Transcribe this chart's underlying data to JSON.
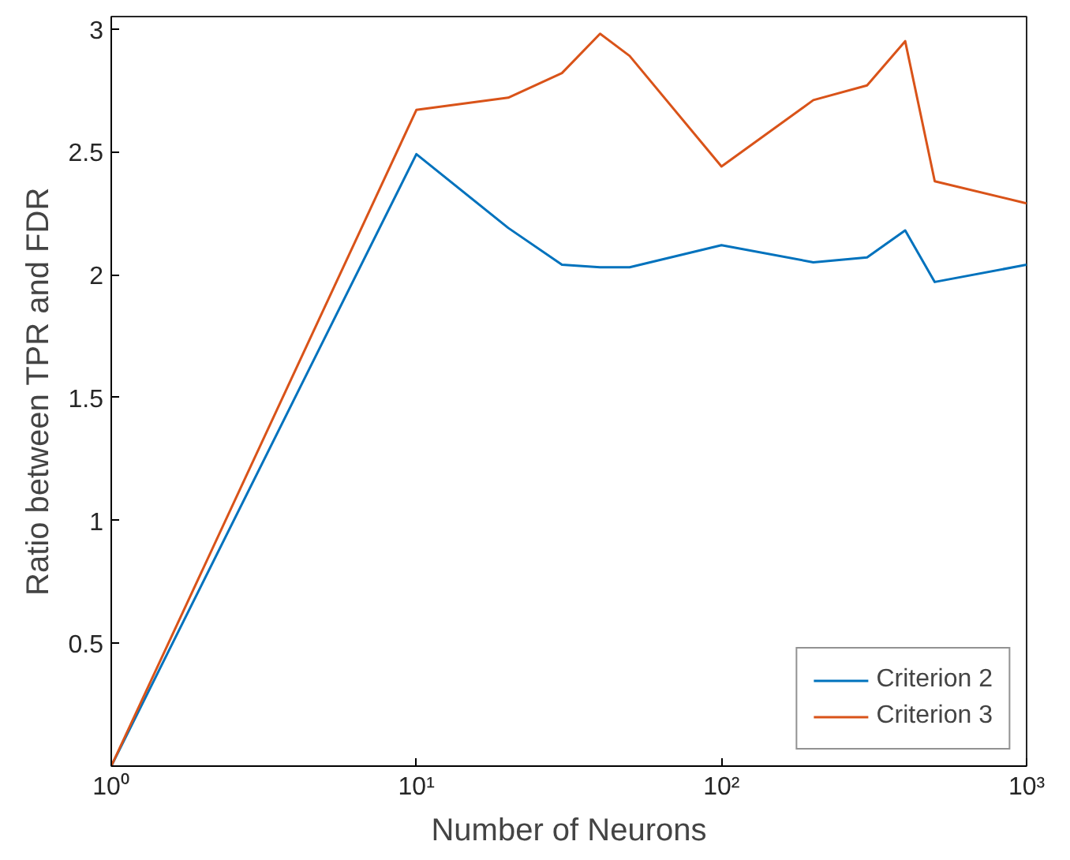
{
  "chart_data": {
    "type": "line",
    "xlabel": "Number of Neurons",
    "ylabel": "Ratio between TPR and FDR",
    "log": "x",
    "x": [
      1,
      10,
      20,
      30,
      40,
      50,
      100,
      200,
      300,
      400,
      500,
      1000
    ],
    "series": [
      {
        "name": "Criterion 2",
        "color": "#0072bd",
        "values": [
          0,
          2.49,
          2.19,
          2.04,
          2.03,
          2.03,
          2.12,
          2.05,
          2.07,
          2.18,
          1.97,
          2.04
        ]
      },
      {
        "name": "Criterion 3",
        "color": "#d95319",
        "values": [
          0,
          2.67,
          2.72,
          2.82,
          2.98,
          2.89,
          2.44,
          2.71,
          2.77,
          2.95,
          2.38,
          2.29
        ]
      }
    ],
    "xlim": [
      1,
      1000
    ],
    "xticks": [
      {
        "value": 1,
        "label": "10⁰"
      },
      {
        "value": 10,
        "label": "10¹"
      },
      {
        "value": 100,
        "label": "10²"
      },
      {
        "value": 1000,
        "label": "10³"
      }
    ],
    "ylim": [
      0,
      3.05
    ],
    "yticks": [
      0.5,
      1,
      1.5,
      2,
      2.5,
      3
    ],
    "grid": false,
    "legend": "bottom right",
    "marker": "none",
    "line_style": "solid"
  }
}
